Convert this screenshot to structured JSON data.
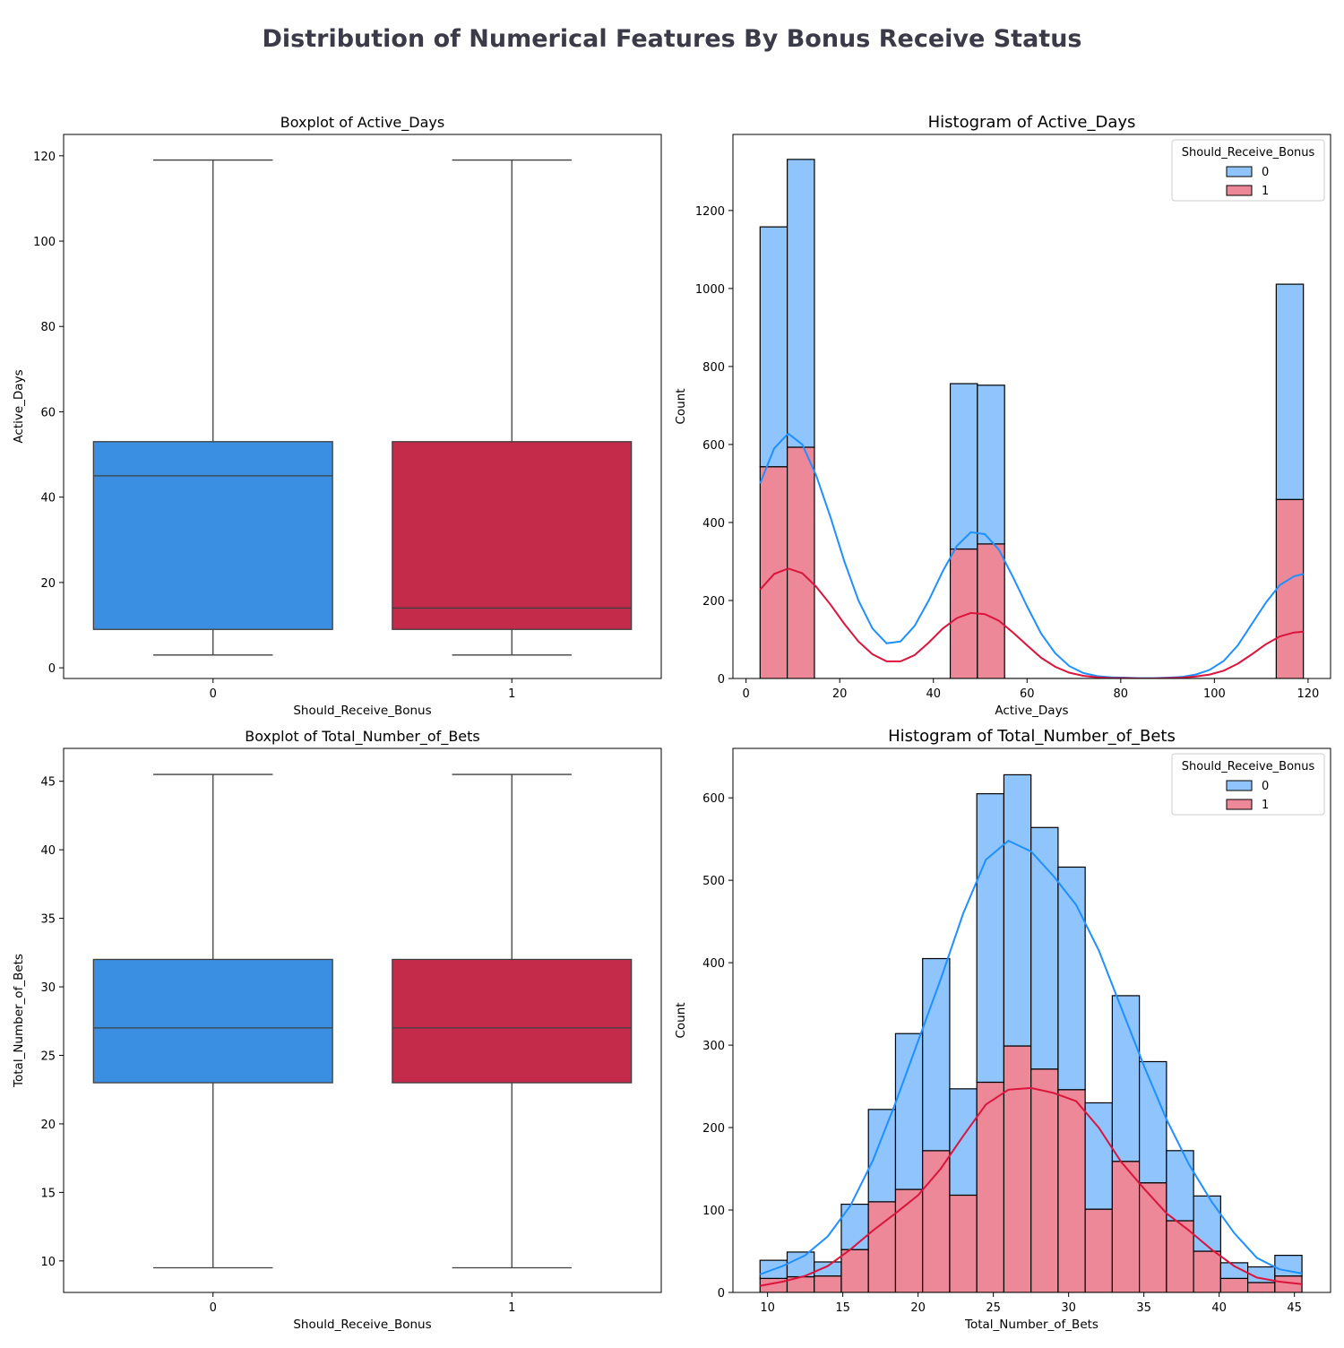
{
  "figure": {
    "title": "Distribution of Numerical Features By Bonus Receive Status",
    "colors": {
      "class0_box": "#3b8fe3",
      "class1_box": "#c42b4b",
      "class0_hist": "#8fc4fc",
      "class1_hist": "#ec8898",
      "class0_kde": "#1e90ff",
      "class1_kde": "#dc143c",
      "title": "#3a3a48"
    }
  },
  "chart_data": [
    {
      "type": "box",
      "title": "Boxplot of Active_Days",
      "xlabel": "Should_Receive_Bonus",
      "ylabel": "Active_Days",
      "categories": [
        "0",
        "1"
      ],
      "ylim": [
        -2.5,
        125
      ],
      "yticks": [
        0,
        20,
        40,
        60,
        80,
        100,
        120
      ],
      "boxes": [
        {
          "category": "0",
          "whisker_low": 3,
          "q1": 9,
          "median": 45,
          "q3": 53,
          "whisker_high": 119
        },
        {
          "category": "1",
          "whisker_low": 3,
          "q1": 9,
          "median": 14,
          "q3": 53,
          "whisker_high": 119
        }
      ]
    },
    {
      "type": "histogram",
      "stacked": true,
      "title": "Histogram of Active_Days",
      "xlabel": "Active_Days",
      "ylabel": "Count",
      "legend": {
        "title": "Should_Receive_Bonus",
        "entries": [
          "0",
          "1"
        ],
        "position": "upper right"
      },
      "xlim": [
        -2.8,
        124.8
      ],
      "ylim": [
        0,
        1395
      ],
      "xticks": [
        0,
        20,
        40,
        60,
        80,
        100,
        120
      ],
      "yticks": [
        0,
        200,
        400,
        600,
        800,
        1000,
        1200
      ],
      "bin_edges": [
        3.0,
        8.8,
        14.6,
        20.4,
        26.2,
        32.0,
        37.8,
        43.6,
        49.4,
        55.2,
        61.0,
        66.8,
        72.6,
        78.4,
        84.2,
        90.0,
        95.8,
        101.6,
        107.4,
        113.2,
        119.0
      ],
      "series": [
        {
          "name": "1",
          "values": [
            543,
            593,
            0,
            0,
            0,
            0,
            0,
            332,
            345,
            0,
            0,
            0,
            0,
            0,
            0,
            0,
            0,
            0,
            0,
            459
          ]
        },
        {
          "name": "0",
          "values": [
            615,
            738,
            0,
            0,
            0,
            0,
            0,
            424,
            407,
            0,
            0,
            0,
            0,
            0,
            0,
            0,
            0,
            0,
            0,
            552
          ]
        }
      ],
      "kde": [
        {
          "name": "0",
          "x": [
            3,
            6,
            9,
            12,
            15,
            18,
            21,
            24,
            27,
            30,
            33,
            36,
            39,
            42,
            45,
            48,
            51,
            54,
            57,
            60,
            63,
            66,
            69,
            72,
            75,
            78,
            81,
            84,
            87,
            90,
            93,
            96,
            99,
            102,
            105,
            108,
            111,
            114,
            117,
            119
          ],
          "y": [
            500,
            590,
            628,
            600,
            520,
            415,
            300,
            200,
            128,
            90,
            95,
            135,
            200,
            275,
            340,
            375,
            370,
            330,
            260,
            185,
            115,
            65,
            32,
            14,
            6,
            3,
            2,
            1,
            1,
            2,
            4,
            10,
            22,
            45,
            85,
            140,
            195,
            240,
            262,
            268
          ]
        },
        {
          "name": "1",
          "x": [
            3,
            6,
            9,
            12,
            15,
            18,
            21,
            24,
            27,
            30,
            33,
            36,
            39,
            42,
            45,
            48,
            51,
            54,
            57,
            60,
            63,
            66,
            69,
            72,
            75,
            78,
            81,
            84,
            87,
            90,
            93,
            96,
            99,
            102,
            105,
            108,
            111,
            114,
            117,
            119
          ],
          "y": [
            228,
            268,
            282,
            270,
            235,
            190,
            140,
            95,
            62,
            44,
            44,
            60,
            92,
            128,
            155,
            168,
            165,
            148,
            118,
            85,
            53,
            30,
            15,
            7,
            3,
            1,
            1,
            0,
            0,
            1,
            2,
            5,
            10,
            20,
            38,
            62,
            88,
            108,
            118,
            120
          ]
        }
      ]
    },
    {
      "type": "box",
      "title": "Boxplot of Total_Number_of_Bets",
      "xlabel": "Should_Receive_Bonus",
      "ylabel": "Total_Number_of_Bets",
      "categories": [
        "0",
        "1"
      ],
      "ylim": [
        7.7,
        47.4
      ],
      "yticks": [
        10,
        15,
        20,
        25,
        30,
        35,
        40,
        45
      ],
      "boxes": [
        {
          "category": "0",
          "whisker_low": 9.5,
          "q1": 23,
          "median": 27,
          "q3": 32,
          "whisker_high": 45.5
        },
        {
          "category": "1",
          "whisker_low": 9.5,
          "q1": 23,
          "median": 27,
          "q3": 32,
          "whisker_high": 45.5
        }
      ]
    },
    {
      "type": "histogram",
      "stacked": true,
      "title": "Histogram of Total_Number_of_Bets",
      "xlabel": "Total_Number_of_Bets",
      "ylabel": "Count",
      "legend": {
        "title": "Should_Receive_Bonus",
        "entries": [
          "0",
          "1"
        ],
        "position": "upper right"
      },
      "xlim": [
        7.7,
        47.4
      ],
      "ylim": [
        0,
        660
      ],
      "xticks": [
        10,
        15,
        20,
        25,
        30,
        35,
        40,
        45
      ],
      "yticks": [
        0,
        100,
        200,
        300,
        400,
        500,
        600
      ],
      "bin_edges": [
        9.5,
        11.3,
        13.1,
        14.9,
        16.7,
        18.5,
        20.3,
        22.1,
        23.9,
        25.7,
        27.5,
        29.3,
        31.1,
        32.9,
        34.7,
        36.5,
        38.3,
        40.1,
        41.9,
        43.7,
        45.5
      ],
      "series": [
        {
          "name": "1",
          "values": [
            17,
            19,
            20,
            52,
            110,
            125,
            172,
            118,
            255,
            299,
            271,
            246,
            101,
            159,
            133,
            87,
            50,
            17,
            12,
            20
          ]
        },
        {
          "name": "0",
          "values": [
            22,
            30,
            17,
            55,
            112,
            189,
            233,
            129,
            350,
            329,
            293,
            270,
            129,
            201,
            147,
            85,
            67,
            19,
            19,
            25
          ]
        }
      ],
      "kde": [
        {
          "name": "0",
          "x": [
            9.5,
            11,
            12.5,
            14,
            15.5,
            17,
            18.5,
            20,
            21.5,
            23,
            24.5,
            26,
            27.5,
            29,
            30.5,
            32,
            33.5,
            35,
            36.5,
            38,
            39.5,
            41,
            42.5,
            44,
            45.5
          ],
          "y": [
            22,
            32,
            45,
            68,
            105,
            160,
            230,
            305,
            380,
            460,
            525,
            548,
            535,
            505,
            470,
            415,
            345,
            275,
            210,
            155,
            110,
            72,
            42,
            28,
            23
          ]
        },
        {
          "name": "1",
          "x": [
            9.5,
            11,
            12.5,
            14,
            15.5,
            17,
            18.5,
            20,
            21.5,
            23,
            24.5,
            26,
            27.5,
            29,
            30.5,
            32,
            33.5,
            35,
            36.5,
            38,
            39.5,
            41,
            42.5,
            44,
            45.5
          ],
          "y": [
            8,
            13,
            20,
            32,
            52,
            75,
            96,
            118,
            150,
            190,
            228,
            246,
            248,
            242,
            232,
            200,
            158,
            126,
            96,
            75,
            52,
            32,
            18,
            13,
            10
          ]
        }
      ]
    }
  ]
}
